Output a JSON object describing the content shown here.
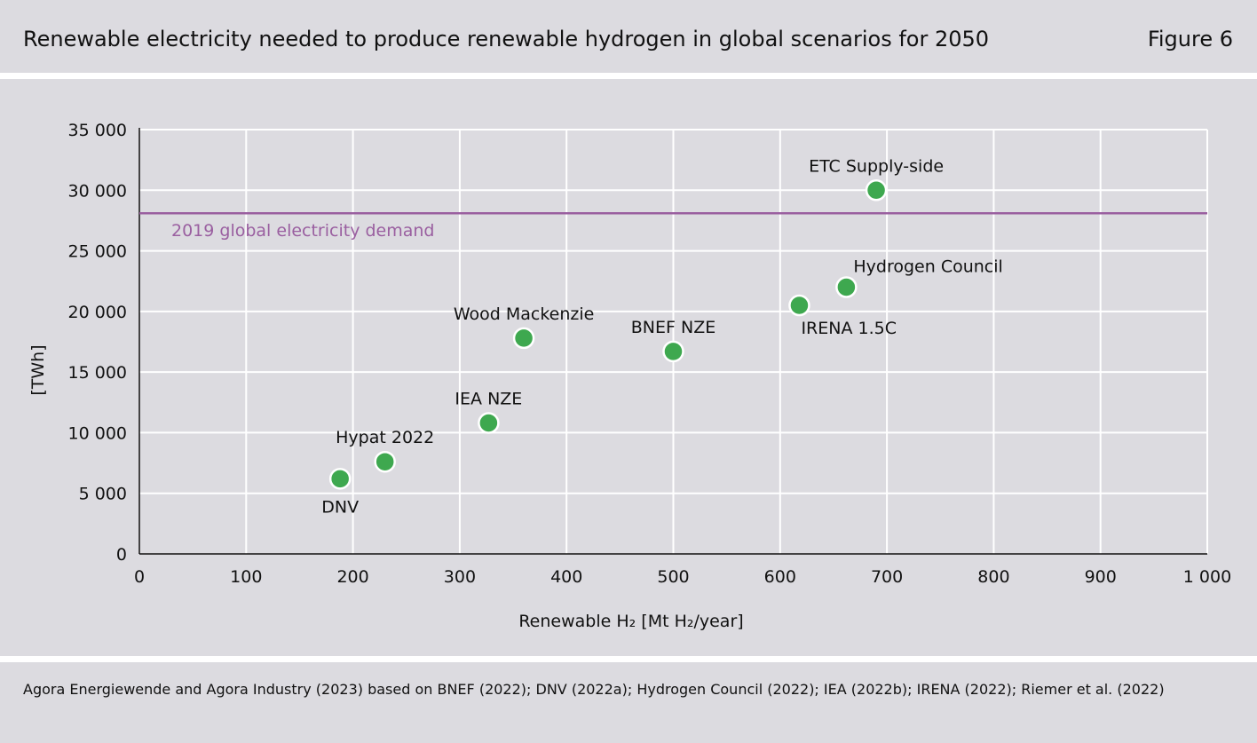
{
  "header": {
    "title": "Renewable electricity needed to produce renewable hydrogen in global scenarios for 2050",
    "figure_label": "Figure 6"
  },
  "footer": {
    "source": "Agora Energiewende and Agora Industry (2023) based on BNEF (2022); DNV (2022a); Hydrogen Council (2022); IEA (2022b); IRENA (2022); Riemer et al. (2022)"
  },
  "colors": {
    "background": "#dcdbe0",
    "point": "#3ea84f",
    "reference_line": "#9a5fa0",
    "grid": "#ffffff"
  },
  "chart_data": {
    "type": "scatter",
    "title": "Renewable electricity needed to produce renewable hydrogen in global scenarios for 2050",
    "xlabel": "Renewable H₂ [Mt H₂/year]",
    "ylabel": "[TWh]",
    "xlim": [
      0,
      1000
    ],
    "ylim": [
      0,
      35000
    ],
    "xticks": [
      0,
      100,
      200,
      300,
      400,
      500,
      600,
      700,
      800,
      900,
      1000
    ],
    "xtick_labels": [
      "0",
      "100",
      "200",
      "300",
      "400",
      "500",
      "600",
      "700",
      "800",
      "900",
      "1 000"
    ],
    "yticks": [
      0,
      5000,
      10000,
      15000,
      20000,
      25000,
      30000,
      35000
    ],
    "ytick_labels": [
      "0",
      "5 000",
      "10 000",
      "15 000",
      "20 000",
      "25 000",
      "30 000",
      "35 000"
    ],
    "grid": true,
    "points": [
      {
        "label": "DNV",
        "x": 188,
        "y": 6200,
        "label_position": "below"
      },
      {
        "label": "Hypat 2022",
        "x": 230,
        "y": 7600,
        "label_position": "above"
      },
      {
        "label": "IEA NZE",
        "x": 327,
        "y": 10800,
        "label_position": "above"
      },
      {
        "label": "Wood Mackenzie",
        "x": 360,
        "y": 17800,
        "label_position": "above"
      },
      {
        "label": "BNEF NZE",
        "x": 500,
        "y": 16700,
        "label_position": "above"
      },
      {
        "label": "IRENA 1.5C",
        "x": 618,
        "y": 20500,
        "label_position": "below-right"
      },
      {
        "label": "Hydrogen Council",
        "x": 662,
        "y": 22000,
        "label_position": "above-right"
      },
      {
        "label": "ETC Supply-side",
        "x": 690,
        "y": 30000,
        "label_position": "above"
      }
    ],
    "reference_line": {
      "label": "2019 global electricity demand",
      "y": 28100
    }
  }
}
